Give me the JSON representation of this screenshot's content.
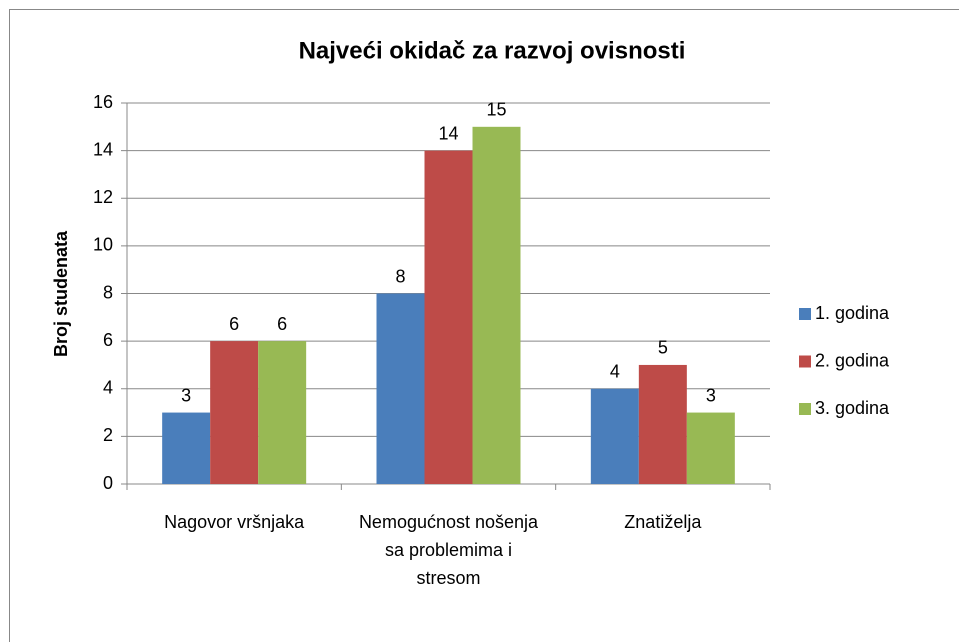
{
  "chart_data": {
    "type": "bar",
    "title": "Najveći okidač za razvoj ovisnosti",
    "y_label": "Broj  studenata",
    "categories": [
      "Nagovor vršnjaka",
      "Nemogućnost nošenja sa problemima i stresom",
      "Znatiželja"
    ],
    "series": [
      {
        "name": "1. godina",
        "color": "#4a7ebb",
        "values": [
          3,
          8,
          4
        ]
      },
      {
        "name": "2. godina",
        "color": "#be4b48",
        "values": [
          6,
          14,
          5
        ]
      },
      {
        "name": "3. godina",
        "color": "#98b954",
        "values": [
          6,
          15,
          3
        ]
      }
    ],
    "ylim": [
      0,
      16
    ],
    "yticks": [
      0,
      2,
      4,
      6,
      8,
      10,
      12,
      14,
      16
    ],
    "grid": true,
    "legend": "right"
  }
}
